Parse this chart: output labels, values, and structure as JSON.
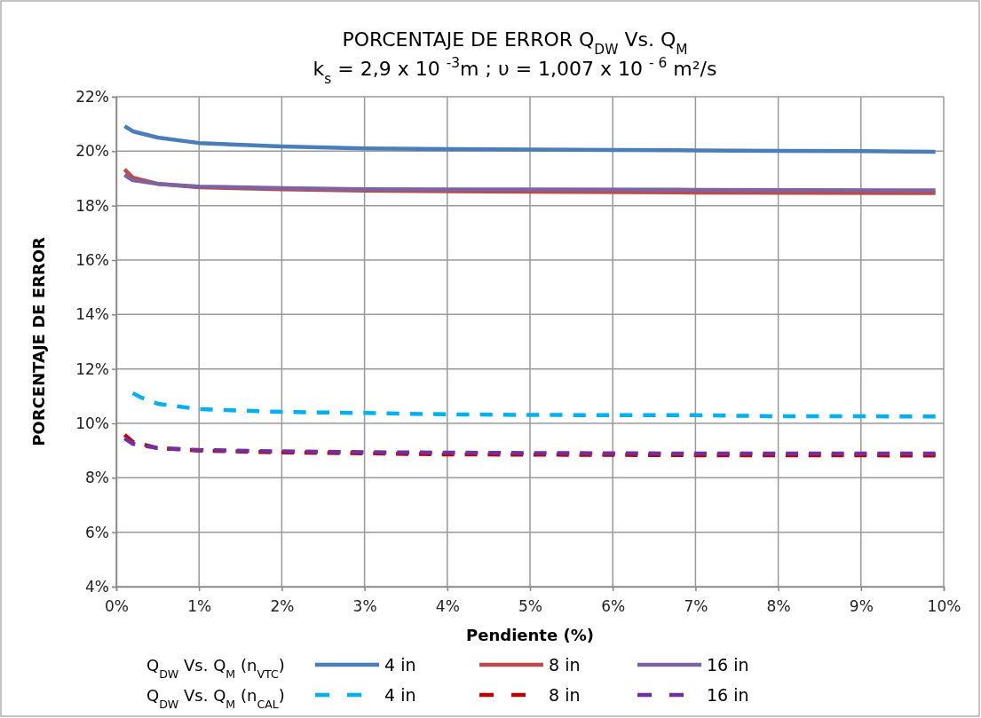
{
  "chart_data": {
    "type": "line",
    "title": "PORCENTAJE DE ERROR Q$_{DW}$ Vs. Q$_{M}$",
    "subtitle": "k$_{s}$ = 2,9 x 10 $^{-3}$m ; υ = 1,007 x 10 $^{- 6}$ m²/s",
    "xlabel": "Pendiente (%)",
    "ylabel": "PORCENTAJE DE ERROR",
    "xlim": [
      0,
      10
    ],
    "xticks": [
      {
        "value": 0,
        "label": "0%"
      },
      {
        "value": 1,
        "label": "1%"
      },
      {
        "value": 2,
        "label": "2%"
      },
      {
        "value": 3,
        "label": "3%"
      },
      {
        "value": 4,
        "label": "4%"
      },
      {
        "value": 5,
        "label": "5%"
      },
      {
        "value": 6,
        "label": "6%"
      },
      {
        "value": 7,
        "label": "7%"
      },
      {
        "value": 8,
        "label": "8%"
      },
      {
        "value": 9,
        "label": "9%"
      },
      {
        "value": 10,
        "label": "10%"
      }
    ],
    "ylim": [
      4,
      22
    ],
    "yticks": [
      {
        "value": 4,
        "label": "4%"
      },
      {
        "value": 6,
        "label": "6%"
      },
      {
        "value": 8,
        "label": "8%"
      },
      {
        "value": 10,
        "label": "10%"
      },
      {
        "value": 12,
        "label": "12%"
      },
      {
        "value": 14,
        "label": "14%"
      },
      {
        "value": 16,
        "label": "16%"
      },
      {
        "value": 18,
        "label": "18%"
      },
      {
        "value": 20,
        "label": "20%"
      },
      {
        "value": 22,
        "label": "22%"
      }
    ],
    "grid": true,
    "legend": "bottom",
    "marker": "none",
    "annotations": [
      "Q$_{DW}$ Vs. Q$_{M}$  (n$_{VTC}$)",
      "Q$_{DW}$ Vs. Q$_{M}$  (n$_{CAL}$)"
    ],
    "series": [
      {
        "name": "4 in",
        "color": "#4a7ebb",
        "line_style": "solid",
        "x": [
          0.1,
          0.2,
          0.5,
          1,
          2,
          3,
          4,
          5,
          6,
          7,
          8,
          9,
          9.9
        ],
        "values": [
          20.92,
          20.73,
          20.5,
          20.3,
          20.17,
          20.1,
          20.08,
          20.06,
          20.04,
          20.03,
          20.01,
          20.0,
          19.98
        ]
      },
      {
        "name": "8 in",
        "color": "#be4b48",
        "line_style": "solid",
        "x": [
          0.1,
          0.2,
          0.5,
          1,
          2,
          3,
          5,
          7,
          9.9
        ],
        "values": [
          19.33,
          19.03,
          18.8,
          18.67,
          18.6,
          18.55,
          18.51,
          18.48,
          18.46
        ]
      },
      {
        "name": "16 in",
        "color": "#7e62a1",
        "line_style": "solid",
        "x": [
          0.1,
          0.2,
          0.5,
          1,
          2,
          3,
          5,
          7,
          9.9
        ],
        "values": [
          19.13,
          18.93,
          18.8,
          18.7,
          18.64,
          18.6,
          18.59,
          18.58,
          18.56
        ]
      },
      {
        "name": "4 in",
        "color": "#00b0f0",
        "line_style": "dashed",
        "x": [
          0.2,
          0.3,
          0.5,
          1,
          2,
          3,
          4,
          5,
          6,
          7,
          8,
          9,
          9.9
        ],
        "values": [
          11.11,
          10.95,
          10.72,
          10.52,
          10.42,
          10.38,
          10.33,
          10.31,
          10.3,
          10.3,
          10.26,
          10.26,
          10.25
        ]
      },
      {
        "name": "8 in",
        "color": "#c00000",
        "line_style": "dashed",
        "x": [
          0.1,
          0.2,
          0.5,
          1,
          2,
          3,
          4,
          5,
          7,
          9.9
        ],
        "values": [
          9.58,
          9.32,
          9.09,
          9.0,
          8.93,
          8.9,
          8.86,
          8.85,
          8.83,
          8.82
        ]
      },
      {
        "name": "16 in",
        "color": "#7030a0",
        "line_style": "dashed",
        "x": [
          0.1,
          0.2,
          0.5,
          1,
          2,
          3,
          5,
          7,
          9.9
        ],
        "values": [
          9.45,
          9.25,
          9.09,
          9.02,
          8.97,
          8.94,
          8.91,
          8.89,
          8.89
        ]
      }
    ]
  }
}
